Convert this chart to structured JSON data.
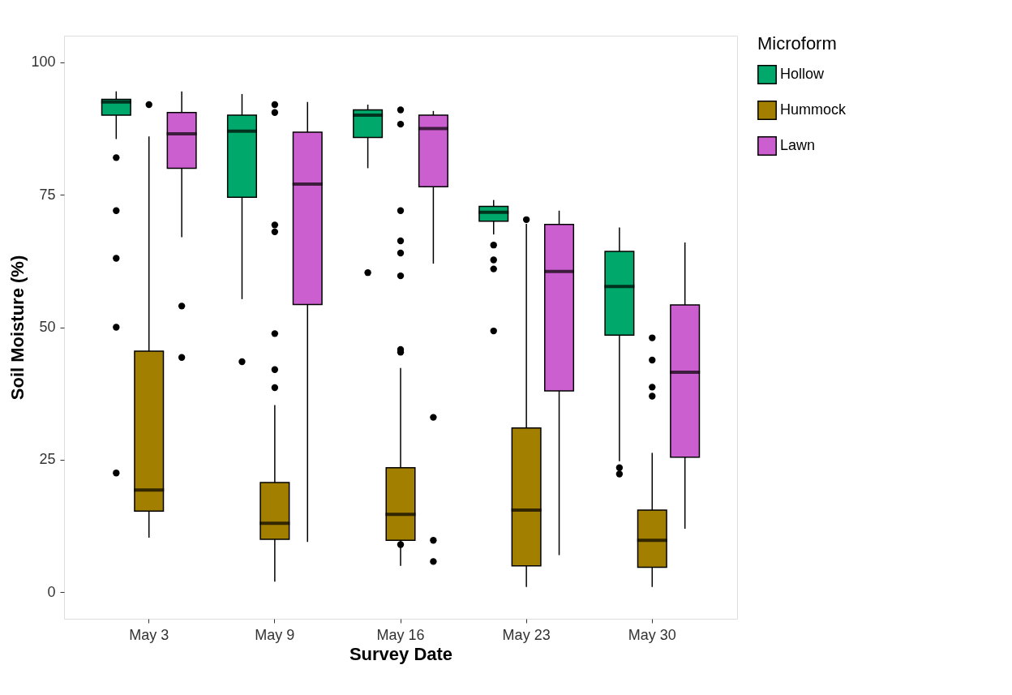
{
  "chart_data": {
    "type": "box",
    "xlabel": "Survey Date",
    "ylabel": "Soil Moisture (%)",
    "legend_title": "Microform",
    "legend": "right",
    "grid": false,
    "categories": [
      "May 3",
      "May 9",
      "May 16",
      "May 23",
      "May 30"
    ],
    "ylim": [
      -5,
      105
    ],
    "yticks": [
      0,
      25,
      50,
      75,
      100
    ],
    "series": [
      {
        "name": "Hollow",
        "color": "#00a86b",
        "boxes": [
          {
            "low": 85.5,
            "q1": 90,
            "median": 92.5,
            "q3": 93,
            "high": 94.5,
            "outliers": [
              82,
              72,
              63,
              50,
              22.5
            ]
          },
          {
            "low": 55.3,
            "q1": 74.5,
            "median": 87,
            "q3": 90,
            "high": 94,
            "outliers": [
              43.5
            ]
          },
          {
            "low": 80,
            "q1": 85.8,
            "median": 90,
            "q3": 91,
            "high": 92,
            "outliers": [
              60.3
            ]
          },
          {
            "low": 67.5,
            "q1": 70,
            "median": 71.7,
            "q3": 72.8,
            "high": 74,
            "outliers": [
              65.5,
              62.7,
              61,
              49.3
            ]
          },
          {
            "low": 24.7,
            "q1": 48.5,
            "median": 57.7,
            "q3": 64.3,
            "high": 68.8,
            "outliers": [
              23.5,
              22.3
            ]
          }
        ]
      },
      {
        "name": "Hummock",
        "color": "#a37f00",
        "boxes": [
          {
            "low": 10.3,
            "q1": 15.3,
            "median": 19.3,
            "q3": 45.5,
            "high": 86,
            "outliers": [
              92
            ]
          },
          {
            "low": 2,
            "q1": 10,
            "median": 13,
            "q3": 20.7,
            "high": 35.3,
            "outliers": [
              92,
              90.5,
              69.3,
              68,
              48.8,
              42,
              38.6
            ]
          },
          {
            "low": 5,
            "q1": 9.8,
            "median": 14.7,
            "q3": 23.5,
            "high": 42.3,
            "outliers": [
              91,
              88.3,
              72,
              66.3,
              64,
              59.7,
              45.8,
              45.3,
              9
            ]
          },
          {
            "low": 1,
            "q1": 5,
            "median": 15.5,
            "q3": 31,
            "high": 69.5,
            "outliers": [
              70.3
            ]
          },
          {
            "low": 1,
            "q1": 4.7,
            "median": 9.8,
            "q3": 15.5,
            "high": 26.3,
            "outliers": [
              48,
              43.8,
              38.7,
              37
            ]
          }
        ]
      },
      {
        "name": "Lawn",
        "color": "#cc5fcf",
        "boxes": [
          {
            "low": 67,
            "q1": 80,
            "median": 86.5,
            "q3": 90.5,
            "high": 94.5,
            "outliers": [
              54,
              44.3
            ]
          },
          {
            "low": 9.5,
            "q1": 54.3,
            "median": 77,
            "q3": 86.8,
            "high": 92.5
          },
          {
            "low": 62,
            "q1": 76.5,
            "median": 87.5,
            "q3": 90,
            "high": 90.8,
            "outliers": [
              33,
              9.8,
              5.8
            ]
          },
          {
            "low": 7,
            "q1": 38,
            "median": 60.5,
            "q3": 69.4,
            "high": 72
          },
          {
            "low": 12,
            "q1": 25.5,
            "median": 41.5,
            "q3": 54.2,
            "high": 66
          }
        ]
      }
    ]
  }
}
